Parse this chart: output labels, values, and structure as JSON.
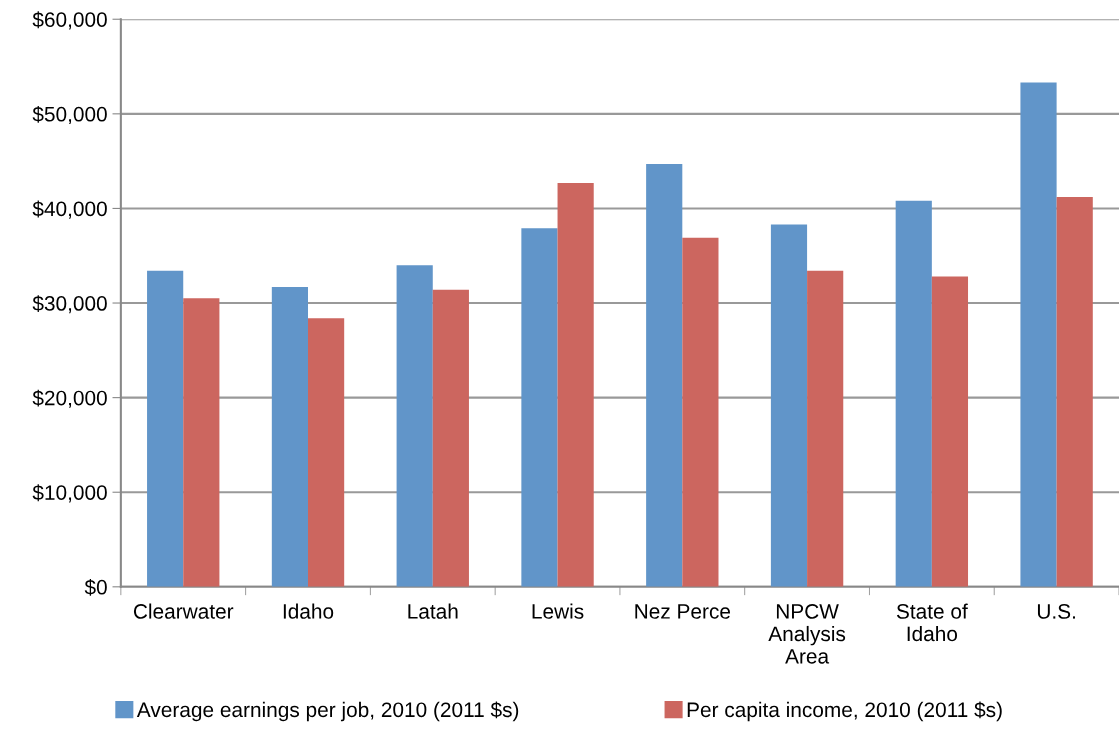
{
  "chart_data": {
    "type": "bar",
    "categories": [
      "Clearwater",
      "Idaho",
      "Latah",
      "Lewis",
      "Nez Perce",
      "NPCW\nAnalysis\nArea",
      "State of\nIdaho",
      "U.S."
    ],
    "series": [
      {
        "name": "Average earnings per job, 2010 (2011 $s)",
        "color": "#6195c9",
        "values": [
          33400,
          31700,
          34000,
          37900,
          44700,
          38300,
          40800,
          53300
        ]
      },
      {
        "name": "Per capita income, 2010 (2011 $s)",
        "color": "#cc665f",
        "values": [
          30500,
          28400,
          31400,
          42700,
          36900,
          33400,
          32800,
          41200
        ]
      }
    ],
    "ylim": [
      0,
      60000
    ],
    "yticks": [
      {
        "value": 0,
        "label": "$0"
      },
      {
        "value": 10000,
        "label": "$10,000"
      },
      {
        "value": 20000,
        "label": "$20,000"
      },
      {
        "value": 30000,
        "label": "$30,000"
      },
      {
        "value": 40000,
        "label": "$40,000"
      },
      {
        "value": 50000,
        "label": "$50,000"
      },
      {
        "value": 60000,
        "label": "$60,000"
      }
    ],
    "grid": "y",
    "legend": "bottom"
  }
}
